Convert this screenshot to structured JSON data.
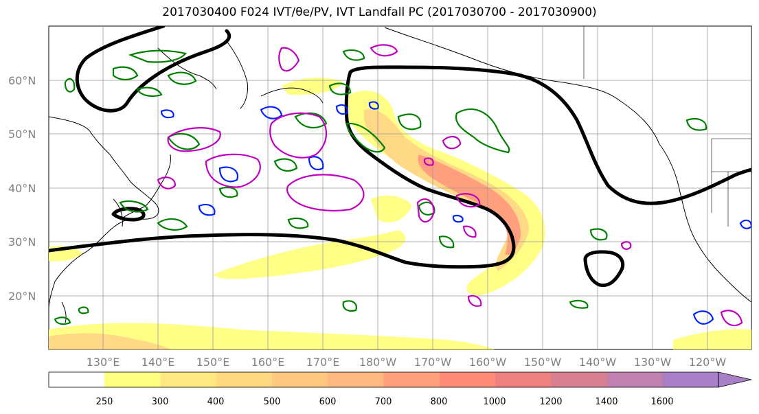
{
  "title": "2017030400 F024 IVT/θe/PV, IVT Landfall PC (2017030700 - 2017030900)",
  "map": {
    "lat_labels": [
      "60°N",
      "50°N",
      "40°N",
      "30°N",
      "20°N"
    ],
    "lon_labels": [
      "130°E",
      "140°E",
      "150°E",
      "160°E",
      "170°E",
      "180°W",
      "170°W",
      "160°W",
      "150°W",
      "140°W",
      "130°W",
      "120°W"
    ],
    "lat_range": [
      10,
      70
    ],
    "lon_range": [
      120,
      247
    ],
    "gridlines": true
  },
  "colorbar": {
    "ticks": [
      "250",
      "300",
      "400",
      "500",
      "600",
      "700",
      "800",
      "1000",
      "1200",
      "1400",
      "1600"
    ],
    "colors": [
      "#ffffff",
      "#ffff80",
      "#ffe880",
      "#ffd880",
      "#ffc880",
      "#ffb880",
      "#ffa07a",
      "#ff8c78",
      "#f08080",
      "#d88090",
      "#c080b0",
      "#a880c8"
    ],
    "extend": "max"
  },
  "colors": {
    "ivt_light": "#ffff80",
    "ivt_mid": "#ffd880",
    "ivt_high": "#ff9a78",
    "landfall_pc": "#000000",
    "pv_contour": "#008000",
    "theta_e_blue": "#0022ff",
    "theta_e_magenta": "#c000c0"
  }
}
